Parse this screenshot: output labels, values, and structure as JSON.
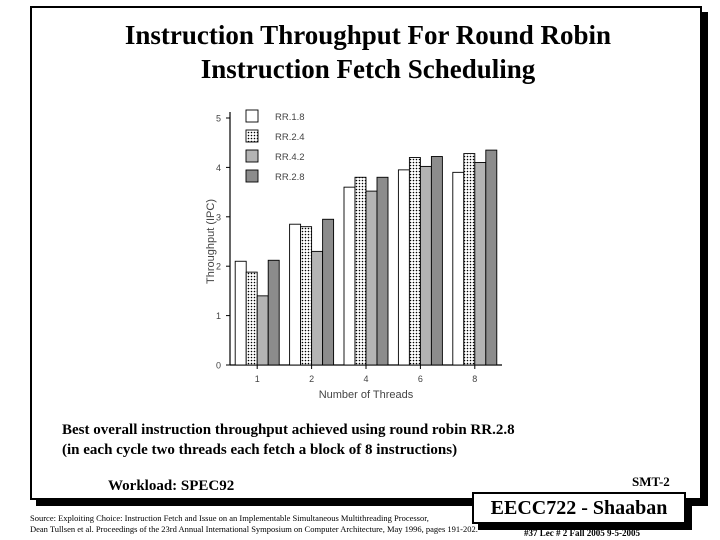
{
  "slide": {
    "title_line1": "Instruction Throughput For Round Robin",
    "title_line2": "Instruction Fetch Scheduling",
    "caption_line1": "Best overall instruction throughput achieved using round robin RR.2.8",
    "caption_line2": "(in each cycle two threads each fetch a block of 8 instructions)",
    "workload": "Workload: SPEC92",
    "slide_id": "SMT-2",
    "source_line1": "Source: Exploiting Choice: Instruction Fetch and Issue on an Implementable Simultaneous Multithreading Processor,",
    "source_line2": "Dean Tullsen et al. Proceedings of the 23rd Annual International Symposium on Computer Architecture, May 1996, pages 191-202.",
    "badge": "EECC722 - Shaaban",
    "footer": "#37   Lec # 2   Fall 2005  9-5-2005"
  },
  "chart_data": {
    "type": "bar",
    "xlabel": "Number of Threads",
    "ylabel": "Throughput (IPC)",
    "categories": [
      "1",
      "2",
      "4",
      "6",
      "8"
    ],
    "ylim": [
      0,
      5
    ],
    "yticks": [
      "0",
      "1",
      "2",
      "3",
      "4",
      "5"
    ],
    "legend_position": "top-left",
    "series": [
      {
        "name": "RR.1.8",
        "fill": "white",
        "values": [
          2.1,
          2.85,
          3.6,
          3.95,
          3.9
        ]
      },
      {
        "name": "RR.2.4",
        "fill": "dotted",
        "values": [
          1.88,
          2.8,
          3.8,
          4.2,
          4.28
        ]
      },
      {
        "name": "RR.4.2",
        "fill": "light-gray",
        "values": [
          1.4,
          2.3,
          3.52,
          4.02,
          4.1
        ]
      },
      {
        "name": "RR.2.8",
        "fill": "dark-gray",
        "values": [
          2.12,
          2.95,
          3.8,
          4.22,
          4.35
        ]
      }
    ],
    "colors": {
      "light-gray": "#b4b4b4",
      "dark-gray": "#8c8c8c",
      "white": "#ffffff"
    }
  }
}
